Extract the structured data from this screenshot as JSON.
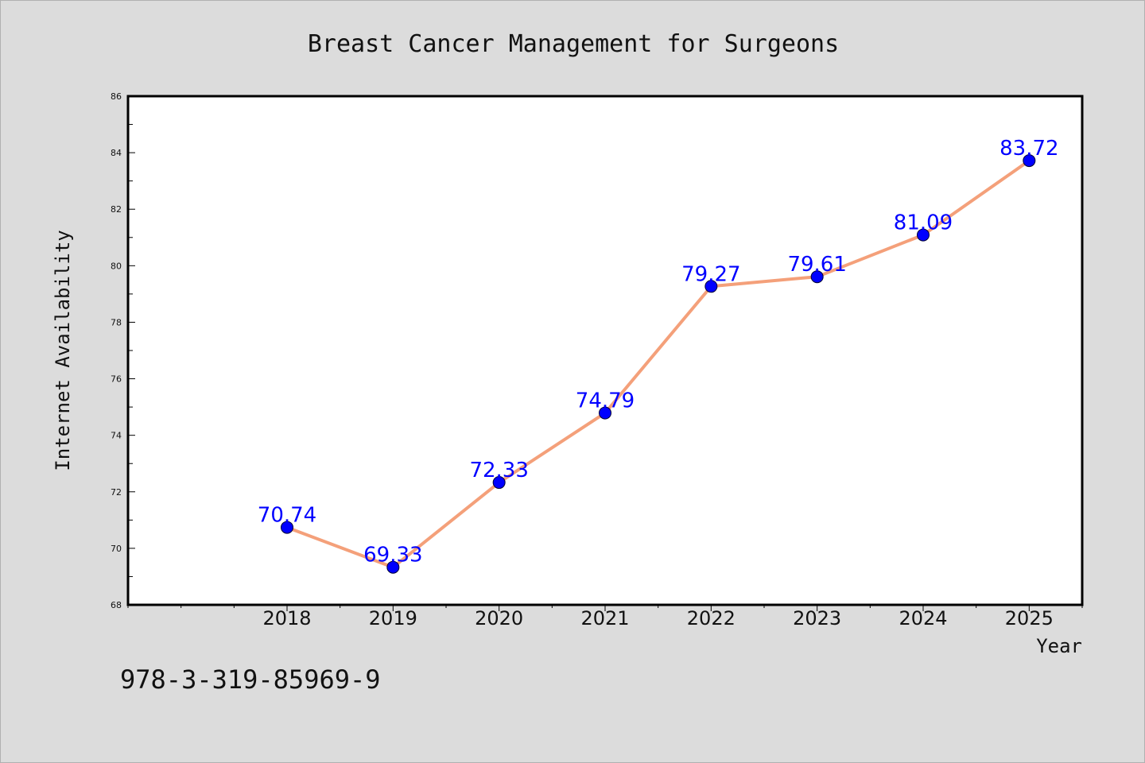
{
  "chart_data": {
    "type": "line",
    "title": "Breast Cancer Management for Surgeons",
    "xlabel": "Year",
    "ylabel": "Internet Availability",
    "x": [
      2018,
      2019,
      2020,
      2021,
      2022,
      2023,
      2024,
      2025
    ],
    "series": [
      {
        "values": [
          70.74,
          69.33,
          72.33,
          74.79,
          79.27,
          79.61,
          81.09,
          83.72
        ],
        "labels": [
          "70.74",
          "69.33",
          "72.33",
          74.79,
          79.27,
          79.61,
          81.09,
          83.72
        ],
        "line_color": "#f4a07a",
        "marker_color": "#0000ff"
      }
    ],
    "xlim": [
      2016.5,
      2025.5
    ],
    "ylim": [
      68,
      86
    ],
    "yticks": [
      68,
      70,
      72,
      74,
      76,
      78,
      80,
      82,
      84,
      86
    ],
    "xticks": [
      2018,
      2019,
      2020,
      2021,
      2022,
      2023,
      2024,
      2025
    ],
    "grid": false,
    "legend": "none"
  },
  "footer": {
    "isbn": "978-3-319-85969-9"
  }
}
